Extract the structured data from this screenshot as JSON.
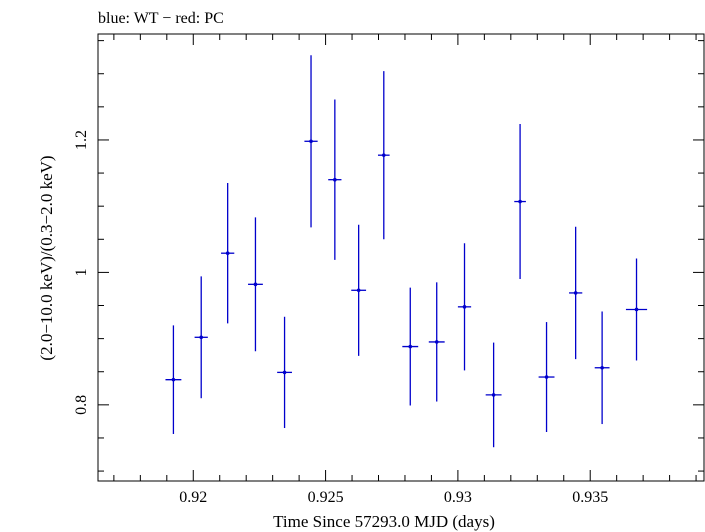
{
  "chart_data": {
    "type": "scatter",
    "title": "blue: WT − red: PC",
    "xlabel": "Time Since 57293.0 MJD (days)",
    "ylabel": "(2.0−10.0 keV)/(0.3−2.0 keV)",
    "xlim": [
      0.9164,
      0.9393
    ],
    "ylim": [
      0.685,
      1.36
    ],
    "x_ticks": [
      0.92,
      0.925,
      0.93,
      0.935
    ],
    "x_tick_labels": [
      "0.92",
      "0.925",
      "0.93",
      "0.935"
    ],
    "y_ticks": [
      0.8,
      1.0,
      1.2
    ],
    "y_tick_labels": [
      "0.8",
      "1",
      "1.2"
    ],
    "grid": false,
    "series": [
      {
        "color": "#0000cc",
        "points": [
          {
            "x": 0.91925,
            "xerr": 0.0003,
            "y": 0.838,
            "yerr": 0.082
          },
          {
            "x": 0.9203,
            "xerr": 0.00025,
            "y": 0.902,
            "yerr": 0.092
          },
          {
            "x": 0.9213,
            "xerr": 0.00025,
            "y": 1.029,
            "yerr": 0.106
          },
          {
            "x": 0.92235,
            "xerr": 0.00028,
            "y": 0.982,
            "yerr": 0.101
          },
          {
            "x": 0.92345,
            "xerr": 0.00028,
            "y": 0.849,
            "yerr": 0.084
          },
          {
            "x": 0.92445,
            "xerr": 0.00025,
            "y": 1.198,
            "yerr": 0.13
          },
          {
            "x": 0.92535,
            "xerr": 0.00025,
            "y": 1.14,
            "yerr": 0.121
          },
          {
            "x": 0.92625,
            "xerr": 0.00028,
            "y": 0.973,
            "yerr": 0.099
          },
          {
            "x": 0.9272,
            "xerr": 0.00022,
            "y": 1.177,
            "yerr": 0.127
          },
          {
            "x": 0.9282,
            "xerr": 0.0003,
            "y": 0.888,
            "yerr": 0.089
          },
          {
            "x": 0.9292,
            "xerr": 0.0003,
            "y": 0.895,
            "yerr": 0.09
          },
          {
            "x": 0.93025,
            "xerr": 0.00025,
            "y": 0.948,
            "yerr": 0.096
          },
          {
            "x": 0.93135,
            "xerr": 0.0003,
            "y": 0.815,
            "yerr": 0.079
          },
          {
            "x": 0.93235,
            "xerr": 0.00022,
            "y": 1.107,
            "yerr": 0.117
          },
          {
            "x": 0.93335,
            "xerr": 0.0003,
            "y": 0.842,
            "yerr": 0.083
          },
          {
            "x": 0.93445,
            "xerr": 0.00025,
            "y": 0.969,
            "yerr": 0.1
          },
          {
            "x": 0.93545,
            "xerr": 0.00028,
            "y": 0.856,
            "yerr": 0.085
          },
          {
            "x": 0.93675,
            "xerr": 0.0004,
            "y": 0.944,
            "yerr": 0.077
          }
        ]
      }
    ]
  }
}
